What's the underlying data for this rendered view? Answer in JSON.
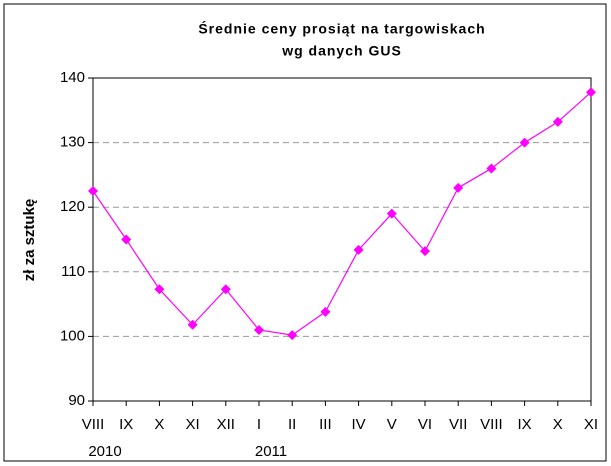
{
  "chart_data": {
    "type": "line",
    "title": [
      "Średnie ceny prosiąt na targowiskach",
      "wg danych GUS"
    ],
    "y_label": "zł za sztukę",
    "categories": [
      "VIII",
      "IX",
      "X",
      "XI",
      "XII",
      "I",
      "II",
      "III",
      "IV",
      "V",
      "VI",
      "VII",
      "VIII",
      "IX",
      "X",
      "XI"
    ],
    "category_years": [
      "2010",
      null,
      null,
      null,
      null,
      "2011",
      null,
      null,
      null,
      null,
      null,
      null,
      null,
      null,
      null,
      null
    ],
    "series": [
      {
        "name": null,
        "color": "#ff00ff",
        "values": [
          122.5,
          115,
          107.3,
          101.8,
          107.3,
          101,
          100.2,
          103.8,
          113.4,
          119,
          113.2,
          123,
          126,
          130,
          133.2,
          137.8
        ]
      }
    ],
    "ylim": [
      90,
      140
    ],
    "yticks": [
      90,
      100,
      110,
      120,
      130,
      140
    ],
    "grid": true
  }
}
